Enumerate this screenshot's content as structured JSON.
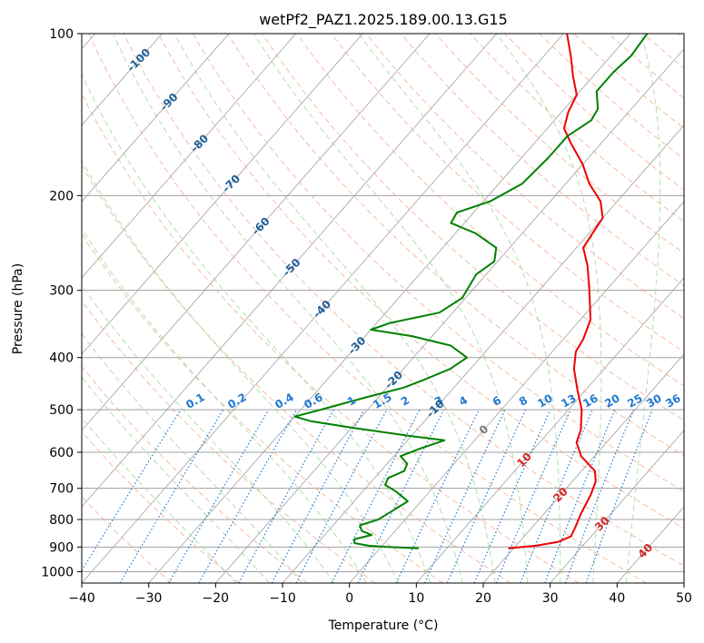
{
  "chart_data": {
    "type": "line",
    "title": "wetPf2_PAZ1.2025.189.00.13.G15",
    "xlabel": "Temperature (°C)",
    "ylabel": "Pressure (hPa)",
    "xlim": [
      -40,
      50
    ],
    "ylim": [
      1050,
      100
    ],
    "yscale": "log",
    "skew": true,
    "grid": true,
    "x_ticks": [
      -40,
      -30,
      -20,
      -10,
      0,
      10,
      20,
      30,
      40,
      50
    ],
    "y_ticks": [
      100,
      200,
      300,
      400,
      500,
      600,
      700,
      800,
      900,
      1000
    ],
    "colors": {
      "temperature": "#ee0000",
      "dewpoint": "#008000",
      "isotherm": "#a0a0a0",
      "dry_adiabat": "#f4a582",
      "moist_adiabat": "#9fd49f",
      "mixing_ratio": "#1f77d4",
      "isotherm_label": "#1f5f99",
      "positive_isotherm_label": "#d62728"
    },
    "isotherm_labels": [
      {
        "t": -100,
        "p": 112,
        "text": "-100"
      },
      {
        "t": -90,
        "p": 134,
        "text": "-90"
      },
      {
        "t": -80,
        "p": 160,
        "text": "-80"
      },
      {
        "t": -70,
        "p": 190,
        "text": "-70"
      },
      {
        "t": -60,
        "p": 228,
        "text": "-60"
      },
      {
        "t": -50,
        "p": 272,
        "text": "-50"
      },
      {
        "t": -40,
        "p": 325,
        "text": "-40"
      },
      {
        "t": -30,
        "p": 380,
        "text": "-30"
      },
      {
        "t": -20,
        "p": 440,
        "text": "-20"
      },
      {
        "t": -10,
        "p": 498,
        "text": "-10"
      },
      {
        "t": 0,
        "p": 545,
        "text": "0"
      },
      {
        "t": 10,
        "p": 620,
        "text": "10"
      },
      {
        "t": 20,
        "p": 720,
        "text": "20"
      },
      {
        "t": 30,
        "p": 815,
        "text": "30"
      },
      {
        "t": 40,
        "p": 915,
        "text": "40"
      }
    ],
    "mixing_ratio_labels": [
      "0.1",
      "0.2",
      "0.4",
      "0.6",
      "1",
      "1.5",
      "2",
      "3",
      "4",
      "6",
      "8",
      "10",
      "13",
      "16",
      "20",
      "25",
      "30",
      "36"
    ],
    "series": [
      {
        "name": "",
        "role": "temperature",
        "points": [
          {
            "p": 905,
            "t": 19.2
          },
          {
            "p": 895,
            "t": 23.0
          },
          {
            "p": 880,
            "t": 25.8
          },
          {
            "p": 860,
            "t": 27.0
          },
          {
            "p": 830,
            "t": 26.5
          },
          {
            "p": 780,
            "t": 25.5
          },
          {
            "p": 720,
            "t": 24.5
          },
          {
            "p": 680,
            "t": 23.5
          },
          {
            "p": 650,
            "t": 22.0
          },
          {
            "p": 610,
            "t": 18.0
          },
          {
            "p": 575,
            "t": 15.5
          },
          {
            "p": 545,
            "t": 14.5
          },
          {
            "p": 500,
            "t": 12.0
          },
          {
            "p": 460,
            "t": 8.8
          },
          {
            "p": 420,
            "t": 5.5
          },
          {
            "p": 390,
            "t": 3.5
          },
          {
            "p": 370,
            "t": 3.0
          },
          {
            "p": 340,
            "t": 1.5
          },
          {
            "p": 300,
            "t": -2.5
          },
          {
            "p": 270,
            "t": -6.0
          },
          {
            "p": 250,
            "t": -9.0
          },
          {
            "p": 235,
            "t": -9.5
          },
          {
            "p": 220,
            "t": -10.0
          },
          {
            "p": 205,
            "t": -12.5
          },
          {
            "p": 190,
            "t": -16.5
          },
          {
            "p": 175,
            "t": -20.0
          },
          {
            "p": 160,
            "t": -24.5
          },
          {
            "p": 150,
            "t": -27.5
          },
          {
            "p": 140,
            "t": -29.0
          },
          {
            "p": 130,
            "t": -30.0
          },
          {
            "p": 120,
            "t": -33.0
          },
          {
            "p": 110,
            "t": -36.0
          },
          {
            "p": 100,
            "t": -39.5
          }
        ]
      },
      {
        "name": "",
        "role": "dewpoint",
        "points": [
          {
            "p": 905,
            "t": 5.8
          },
          {
            "p": 900,
            "t": 1.0
          },
          {
            "p": 895,
            "t": -2.0
          },
          {
            "p": 885,
            "t": -4.5
          },
          {
            "p": 870,
            "t": -5.0
          },
          {
            "p": 855,
            "t": -3.0
          },
          {
            "p": 840,
            "t": -5.0
          },
          {
            "p": 820,
            "t": -6.0
          },
          {
            "p": 800,
            "t": -4.0
          },
          {
            "p": 770,
            "t": -3.0
          },
          {
            "p": 740,
            "t": -2.0
          },
          {
            "p": 710,
            "t": -5.0
          },
          {
            "p": 690,
            "t": -7.5
          },
          {
            "p": 670,
            "t": -8.0
          },
          {
            "p": 650,
            "t": -6.5
          },
          {
            "p": 630,
            "t": -7.0
          },
          {
            "p": 610,
            "t": -9.0
          },
          {
            "p": 590,
            "t": -7.0
          },
          {
            "p": 570,
            "t": -4.5
          },
          {
            "p": 560,
            "t": -10.0
          },
          {
            "p": 540,
            "t": -20.0
          },
          {
            "p": 525,
            "t": -27.0
          },
          {
            "p": 515,
            "t": -30.0
          },
          {
            "p": 500,
            "t": -27.0
          },
          {
            "p": 475,
            "t": -22.0
          },
          {
            "p": 455,
            "t": -17.5
          },
          {
            "p": 440,
            "t": -15.5
          },
          {
            "p": 420,
            "t": -13.0
          },
          {
            "p": 400,
            "t": -12.0
          },
          {
            "p": 380,
            "t": -16.0
          },
          {
            "p": 365,
            "t": -23.0
          },
          {
            "p": 355,
            "t": -30.0
          },
          {
            "p": 345,
            "t": -28.0
          },
          {
            "p": 330,
            "t": -22.0
          },
          {
            "p": 310,
            "t": -20.5
          },
          {
            "p": 280,
            "t": -21.5
          },
          {
            "p": 265,
            "t": -20.5
          },
          {
            "p": 250,
            "t": -22.0
          },
          {
            "p": 235,
            "t": -27.0
          },
          {
            "p": 225,
            "t": -32.0
          },
          {
            "p": 215,
            "t": -32.5
          },
          {
            "p": 205,
            "t": -29.0
          },
          {
            "p": 190,
            "t": -26.5
          },
          {
            "p": 170,
            "t": -26.0
          },
          {
            "p": 155,
            "t": -26.0
          },
          {
            "p": 145,
            "t": -24.5
          },
          {
            "p": 138,
            "t": -25.0
          },
          {
            "p": 128,
            "t": -27.5
          },
          {
            "p": 118,
            "t": -27.5
          },
          {
            "p": 110,
            "t": -27.0
          },
          {
            "p": 100,
            "t": -27.5
          }
        ]
      }
    ]
  }
}
